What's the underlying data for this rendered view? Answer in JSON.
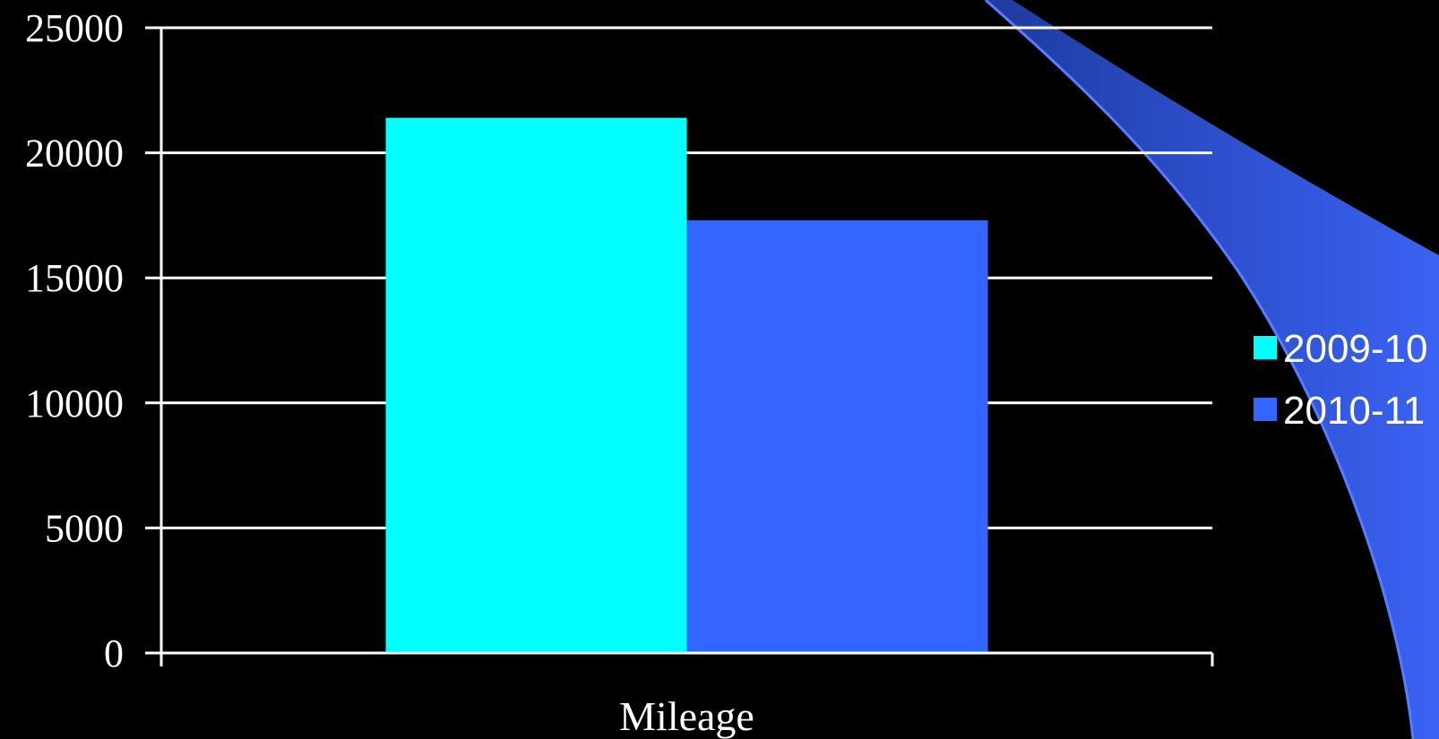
{
  "chart_data": {
    "type": "bar",
    "categories": [
      "Mileage"
    ],
    "series": [
      {
        "name": "2009-10",
        "values": [
          21400
        ],
        "color": "#00FFFF"
      },
      {
        "name": "2010-11",
        "values": [
          17300
        ],
        "color": "#3366FF"
      }
    ],
    "title": "",
    "xlabel": "",
    "ylabel": "",
    "ylim": [
      0,
      25000
    ],
    "yticks": [
      "0",
      "5000",
      "10000",
      "15000",
      "20000",
      "25000"
    ],
    "grid": true,
    "legend_position": "right",
    "background_color": "#000000",
    "axis_color": "#FFFFFF",
    "decoration_color": "#3366FF"
  }
}
